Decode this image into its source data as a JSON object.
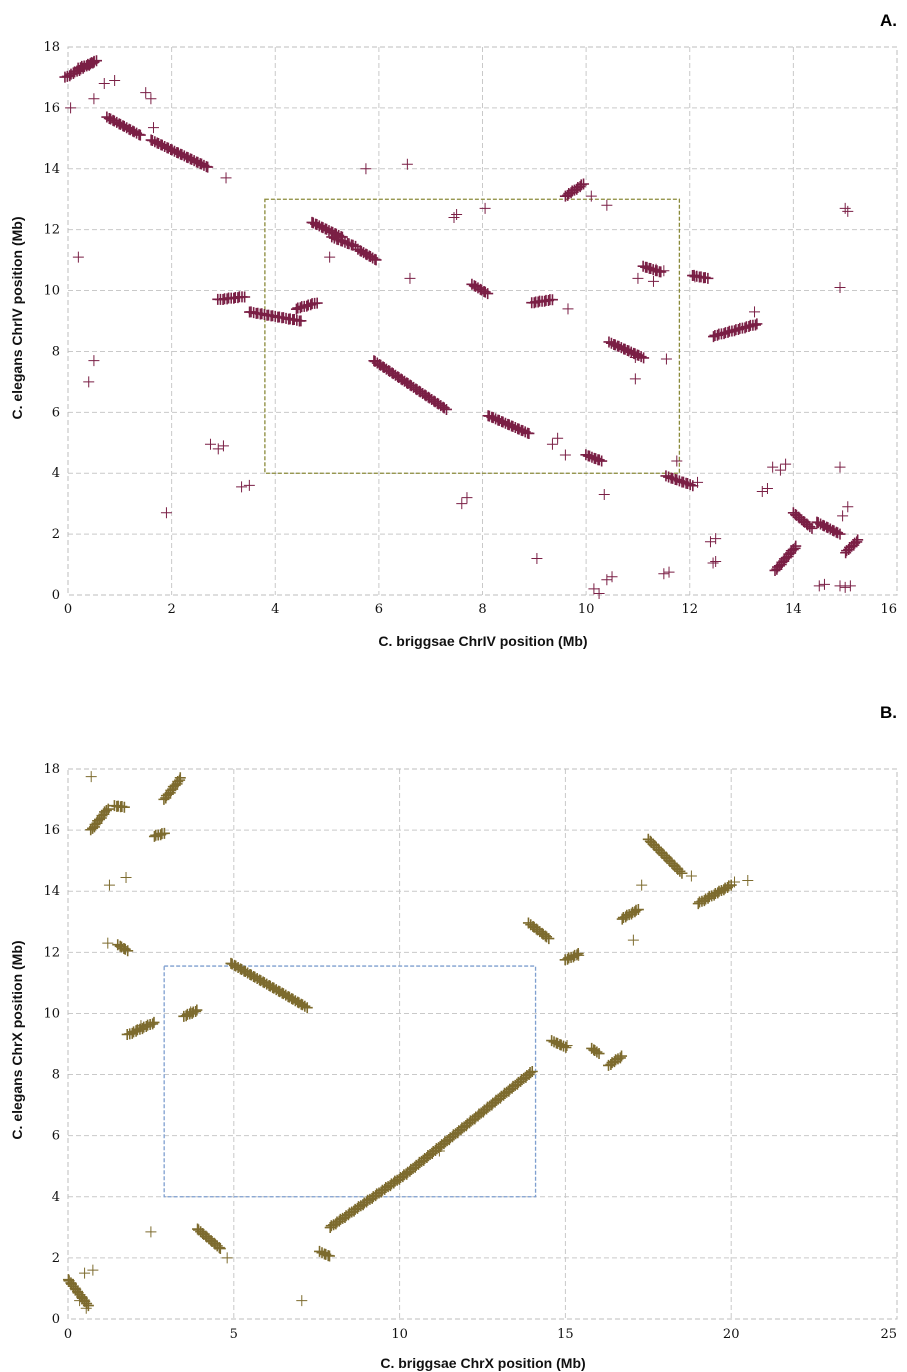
{
  "chart_data": [
    {
      "panel": "A.",
      "type": "scatter",
      "marker": "plus",
      "xlabel": "C. briggsae ChrIV position (Mb)",
      "ylabel": "C. elegans ChrIV position (Mb)",
      "xlim": [
        0,
        16
      ],
      "ylim": [
        0,
        18
      ],
      "xticks": [
        0,
        2,
        4,
        6,
        8,
        10,
        12,
        14,
        16
      ],
      "yticks": [
        0,
        2,
        4,
        6,
        8,
        10,
        12,
        14,
        16,
        18
      ],
      "grid": true,
      "point_color": "#7a1f45",
      "highlight_box": {
        "x": [
          3.8,
          11.8
        ],
        "y": [
          4.0,
          13.0
        ],
        "color": "#8a8a3a"
      },
      "segments": [
        {
          "x": [
            -0.05,
            0.55
          ],
          "y": [
            17.0,
            17.55
          ]
        },
        {
          "x": [
            0.2,
            0.5
          ],
          "y": [
            17.3,
            17.5
          ]
        },
        {
          "x": [
            0.75,
            1.4
          ],
          "y": [
            15.7,
            15.1
          ]
        },
        {
          "x": [
            1.6,
            2.7
          ],
          "y": [
            14.95,
            14.05
          ]
        },
        {
          "x": [
            4.7,
            5.3
          ],
          "y": [
            12.25,
            11.75
          ]
        },
        {
          "x": [
            5.1,
            5.55
          ],
          "y": [
            11.75,
            11.45
          ]
        },
        {
          "x": [
            5.6,
            5.95
          ],
          "y": [
            11.35,
            11.0
          ]
        },
        {
          "x": [
            9.6,
            9.95
          ],
          "y": [
            13.1,
            13.5
          ]
        },
        {
          "x": [
            3.5,
            4.5
          ],
          "y": [
            9.3,
            9.0
          ]
        },
        {
          "x": [
            4.4,
            4.8
          ],
          "y": [
            9.4,
            9.6
          ]
        },
        {
          "x": [
            2.9,
            3.4
          ],
          "y": [
            9.7,
            9.8
          ]
        },
        {
          "x": [
            7.8,
            8.1
          ],
          "y": [
            10.2,
            9.9
          ]
        },
        {
          "x": [
            8.95,
            9.35
          ],
          "y": [
            9.6,
            9.7
          ]
        },
        {
          "x": [
            5.9,
            7.3
          ],
          "y": [
            7.7,
            6.1
          ]
        },
        {
          "x": [
            8.1,
            8.9
          ],
          "y": [
            5.9,
            5.3
          ]
        },
        {
          "x": [
            10.45,
            11.1
          ],
          "y": [
            8.3,
            7.8
          ]
        },
        {
          "x": [
            10.0,
            10.3
          ],
          "y": [
            4.6,
            4.4
          ]
        },
        {
          "x": [
            11.1,
            11.45
          ],
          "y": [
            10.8,
            10.6
          ]
        },
        {
          "x": [
            12.05,
            12.35
          ],
          "y": [
            10.5,
            10.4
          ]
        },
        {
          "x": [
            12.45,
            13.3
          ],
          "y": [
            8.5,
            8.9
          ]
        },
        {
          "x": [
            11.55,
            12.05
          ],
          "y": [
            3.9,
            3.6
          ]
        },
        {
          "x": [
            13.65,
            14.05
          ],
          "y": [
            0.8,
            1.6
          ]
        },
        {
          "x": [
            14.0,
            14.35
          ],
          "y": [
            2.7,
            2.2
          ]
        },
        {
          "x": [
            14.45,
            14.9
          ],
          "y": [
            2.4,
            2.0
          ]
        },
        {
          "x": [
            15.0,
            15.25
          ],
          "y": [
            1.4,
            1.8
          ]
        }
      ],
      "points": [
        [
          0.05,
          16.0
        ],
        [
          0.2,
          11.1
        ],
        [
          0.4,
          7.0
        ],
        [
          0.5,
          7.7
        ],
        [
          0.5,
          16.3
        ],
        [
          0.7,
          16.8
        ],
        [
          0.9,
          16.9
        ],
        [
          1.5,
          16.5
        ],
        [
          1.6,
          16.3
        ],
        [
          1.65,
          15.35
        ],
        [
          3.05,
          13.7
        ],
        [
          5.75,
          14.0
        ],
        [
          6.55,
          14.15
        ],
        [
          5.05,
          11.1
        ],
        [
          6.6,
          10.4
        ],
        [
          7.45,
          12.4
        ],
        [
          7.5,
          12.5
        ],
        [
          8.05,
          12.7
        ],
        [
          10.1,
          13.1
        ],
        [
          10.4,
          12.8
        ],
        [
          9.65,
          9.4
        ],
        [
          9.45,
          5.15
        ],
        [
          9.35,
          4.95
        ],
        [
          9.6,
          4.6
        ],
        [
          9.05,
          1.2
        ],
        [
          7.6,
          3.0
        ],
        [
          7.7,
          3.2
        ],
        [
          1.9,
          2.7
        ],
        [
          2.75,
          4.95
        ],
        [
          2.9,
          4.8
        ],
        [
          3.0,
          4.9
        ],
        [
          3.35,
          3.55
        ],
        [
          3.5,
          3.6
        ],
        [
          10.35,
          3.3
        ],
        [
          10.15,
          0.2
        ],
        [
          10.25,
          0.05
        ],
        [
          10.4,
          0.5
        ],
        [
          10.5,
          0.6
        ],
        [
          10.95,
          7.1
        ],
        [
          11.55,
          7.75
        ],
        [
          11.75,
          4.4
        ],
        [
          11.6,
          0.75
        ],
        [
          11.5,
          0.7
        ],
        [
          12.15,
          3.7
        ],
        [
          12.4,
          1.75
        ],
        [
          12.5,
          1.85
        ],
        [
          12.45,
          1.05
        ],
        [
          12.5,
          1.1
        ],
        [
          13.4,
          3.4
        ],
        [
          13.5,
          3.5
        ],
        [
          13.6,
          4.2
        ],
        [
          13.75,
          4.1
        ],
        [
          13.85,
          4.3
        ],
        [
          13.25,
          9.3
        ],
        [
          14.5,
          0.3
        ],
        [
          14.6,
          0.35
        ],
        [
          14.9,
          0.3
        ],
        [
          15.0,
          0.25
        ],
        [
          15.1,
          0.3
        ],
        [
          14.95,
          2.6
        ],
        [
          15.05,
          2.9
        ],
        [
          14.9,
          4.2
        ],
        [
          14.9,
          10.1
        ],
        [
          15.05,
          12.6
        ],
        [
          15.0,
          12.7
        ],
        [
          11.0,
          10.4
        ],
        [
          11.3,
          10.3
        ],
        [
          11.35,
          10.7
        ],
        [
          11.5,
          10.65
        ],
        [
          12.1,
          10.45
        ],
        [
          10.95,
          7.8
        ]
      ]
    },
    {
      "panel": "B.",
      "type": "scatter",
      "marker": "plus",
      "xlabel": "C. briggsae ChrX position (Mb)",
      "ylabel": "C. elegans ChrX position (Mb)",
      "xlim": [
        0,
        25
      ],
      "ylim": [
        0,
        18
      ],
      "xticks": [
        0,
        5,
        10,
        15,
        20,
        25
      ],
      "yticks": [
        0,
        2,
        4,
        6,
        8,
        10,
        12,
        14,
        16,
        18
      ],
      "grid": true,
      "point_color": "#7d6b2e",
      "highlight_box": {
        "x": [
          2.9,
          14.1
        ],
        "y": [
          4.0,
          11.55
        ],
        "color": "#7f9fcf"
      },
      "segments": [
        {
          "x": [
            0.7,
            1.2
          ],
          "y": [
            16.0,
            16.7
          ]
        },
        {
          "x": [
            2.9,
            3.4
          ],
          "y": [
            17.0,
            17.7
          ]
        },
        {
          "x": [
            1.4,
            1.7
          ],
          "y": [
            16.8,
            16.75
          ]
        },
        {
          "x": [
            2.6,
            2.9
          ],
          "y": [
            15.8,
            15.9
          ]
        },
        {
          "x": [
            4.9,
            7.2
          ],
          "y": [
            11.65,
            10.2
          ]
        },
        {
          "x": [
            1.8,
            2.6
          ],
          "y": [
            9.3,
            9.7
          ]
        },
        {
          "x": [
            3.5,
            3.9
          ],
          "y": [
            9.9,
            10.1
          ]
        },
        {
          "x": [
            1.5,
            1.8
          ],
          "y": [
            12.25,
            12.05
          ]
        },
        {
          "x": [
            7.9,
            10.2
          ],
          "y": [
            3.0,
            4.75
          ]
        },
        {
          "x": [
            10.2,
            14.0
          ],
          "y": [
            4.75,
            8.1
          ]
        },
        {
          "x": [
            13.9,
            14.5
          ],
          "y": [
            12.95,
            12.45
          ]
        },
        {
          "x": [
            15.0,
            15.4
          ],
          "y": [
            11.75,
            11.95
          ]
        },
        {
          "x": [
            17.5,
            18.5
          ],
          "y": [
            15.7,
            14.6
          ]
        },
        {
          "x": [
            19.0,
            20.0
          ],
          "y": [
            13.6,
            14.2
          ]
        },
        {
          "x": [
            16.7,
            17.2
          ],
          "y": [
            13.1,
            13.4
          ]
        },
        {
          "x": [
            14.6,
            15.0
          ],
          "y": [
            9.1,
            8.9
          ]
        },
        {
          "x": [
            15.8,
            16.0
          ],
          "y": [
            8.85,
            8.7
          ]
        },
        {
          "x": [
            16.3,
            16.7
          ],
          "y": [
            8.3,
            8.6
          ]
        },
        {
          "x": [
            3.9,
            4.6
          ],
          "y": [
            2.95,
            2.3
          ]
        },
        {
          "x": [
            0.0,
            0.6
          ],
          "y": [
            1.3,
            0.45
          ]
        },
        {
          "x": [
            7.6,
            7.9
          ],
          "y": [
            2.2,
            2.05
          ]
        }
      ],
      "points": [
        [
          0.7,
          17.75
        ],
        [
          1.25,
          14.2
        ],
        [
          1.75,
          14.45
        ],
        [
          17.3,
          14.2
        ],
        [
          20.1,
          14.3
        ],
        [
          20.5,
          14.35
        ],
        [
          17.05,
          12.4
        ],
        [
          11.2,
          5.5
        ],
        [
          2.5,
          2.85
        ],
        [
          4.8,
          2.0
        ],
        [
          7.05,
          0.6
        ],
        [
          0.5,
          1.5
        ],
        [
          0.75,
          1.6
        ],
        [
          18.8,
          14.5
        ],
        [
          1.2,
          12.3
        ],
        [
          15.4,
          11.9
        ],
        [
          15.05,
          8.95
        ],
        [
          3.7,
          10.05
        ],
        [
          2.2,
          9.6
        ],
        [
          0.35,
          0.6
        ],
        [
          0.55,
          0.35
        ]
      ]
    }
  ]
}
